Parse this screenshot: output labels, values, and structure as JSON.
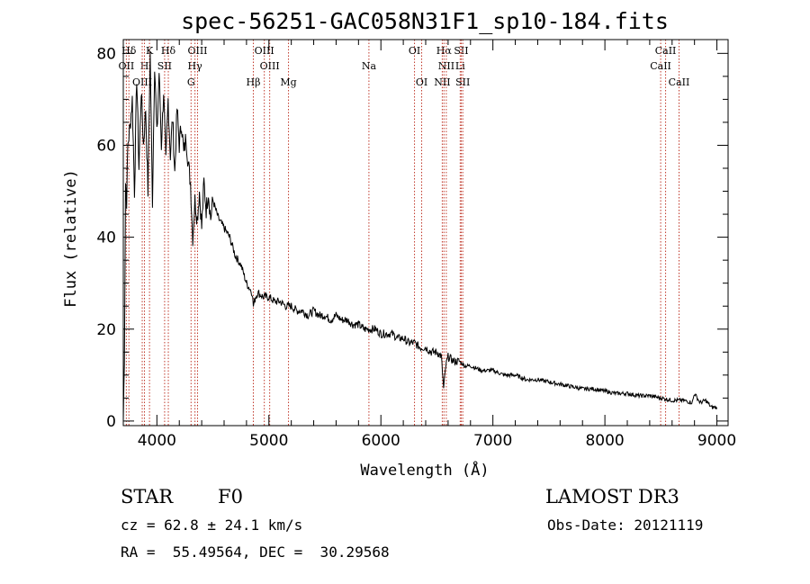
{
  "chart_data": {
    "type": "line",
    "title": "spec-56251-GAC058N31F1_sp10-184.fits",
    "xlabel": "Wavelength (Å)",
    "ylabel": "Flux (relative)",
    "xlim": [
      3700,
      9100
    ],
    "ylim": [
      -1,
      83
    ],
    "xticks": [
      4000,
      5000,
      6000,
      7000,
      8000,
      9000
    ],
    "yticks": [
      0,
      20,
      40,
      60,
      80
    ],
    "series": [
      {
        "name": "spectrum",
        "x": [
          3700,
          3710,
          3720,
          3730,
          3740,
          3760,
          3780,
          3800,
          3820,
          3840,
          3860,
          3880,
          3900,
          3920,
          3940,
          3960,
          3980,
          4000,
          4020,
          4040,
          4060,
          4080,
          4100,
          4120,
          4140,
          4160,
          4180,
          4200,
          4220,
          4240,
          4260,
          4280,
          4300,
          4320,
          4340,
          4360,
          4380,
          4400,
          4420,
          4440,
          4460,
          4480,
          4500,
          4550,
          4600,
          4650,
          4700,
          4750,
          4800,
          4850,
          4861,
          4880,
          4900,
          4950,
          5000,
          5050,
          5100,
          5150,
          5200,
          5250,
          5300,
          5350,
          5400,
          5450,
          5500,
          5550,
          5600,
          5650,
          5700,
          5750,
          5800,
          5850,
          5900,
          5950,
          6000,
          6050,
          6100,
          6150,
          6200,
          6250,
          6300,
          6350,
          6400,
          6450,
          6500,
          6540,
          6560,
          6580,
          6600,
          6650,
          6700,
          6750,
          6800,
          6900,
          7000,
          7100,
          7200,
          7300,
          7400,
          7500,
          7600,
          7700,
          7800,
          7900,
          8000,
          8100,
          8200,
          8300,
          8400,
          8500,
          8600,
          8700,
          8780,
          8800,
          8850,
          8900,
          8950,
          9000
        ],
        "y": [
          0,
          14,
          52,
          48,
          60,
          64,
          70,
          50,
          75,
          55,
          72,
          60,
          68,
          50,
          80,
          48,
          78,
          62,
          76,
          60,
          72,
          56,
          70,
          58,
          66,
          54,
          68,
          60,
          65,
          58,
          62,
          56,
          52,
          40,
          48,
          44,
          50,
          42,
          52,
          46,
          50,
          44,
          48,
          44,
          42,
          40,
          36,
          34,
          30,
          28,
          25,
          27,
          28,
          27,
          27,
          26,
          26,
          25,
          25,
          24,
          24,
          23,
          24,
          23,
          23,
          22,
          23,
          22,
          22,
          21,
          21,
          20,
          20,
          20,
          19,
          19,
          19,
          18,
          18,
          17,
          17,
          16,
          16,
          15,
          15,
          14,
          7,
          12,
          14,
          13,
          13,
          12,
          12,
          11,
          11,
          10,
          10,
          9,
          9,
          8.5,
          8,
          7.5,
          7,
          7,
          6.5,
          6,
          6,
          5.5,
          5.5,
          5,
          4.5,
          4.5,
          4,
          6,
          4,
          4.5,
          3,
          3
        ]
      }
    ],
    "line_markers": [
      {
        "label": "Hδ",
        "row": 0,
        "x": 3750
      },
      {
        "label": "K",
        "row": 0,
        "x": 3934
      },
      {
        "label": "Hδ",
        "row": 0,
        "x": 4102
      },
      {
        "label": "OIII",
        "row": 0,
        "x": 4363
      },
      {
        "label": "OIII",
        "row": 0,
        "x": 4959
      },
      {
        "label": "OI",
        "row": 0,
        "x": 6300
      },
      {
        "label": "Hα",
        "row": 0,
        "x": 6563
      },
      {
        "label": "SII",
        "row": 0,
        "x": 6717
      },
      {
        "label": "CaII",
        "row": 0,
        "x": 8542
      },
      {
        "label": "OII",
        "row": 1,
        "x": 3727
      },
      {
        "label": "H",
        "row": 1,
        "x": 3889
      },
      {
        "label": "SII",
        "row": 1,
        "x": 4069
      },
      {
        "label": "Hγ",
        "row": 1,
        "x": 4340
      },
      {
        "label": "OIII",
        "row": 1,
        "x": 5007
      },
      {
        "label": "Na",
        "row": 1,
        "x": 5893
      },
      {
        "label": "NII",
        "row": 1,
        "x": 6584
      },
      {
        "label": "Li",
        "row": 1,
        "x": 6708
      },
      {
        "label": "CaII",
        "row": 1,
        "x": 8498
      },
      {
        "label": "OIII",
        "row": 2,
        "x": 3869
      },
      {
        "label": "G",
        "row": 2,
        "x": 4305
      },
      {
        "label": "Hβ",
        "row": 2,
        "x": 4861
      },
      {
        "label": "Mg",
        "row": 2,
        "x": 5175
      },
      {
        "label": "OI",
        "row": 2,
        "x": 6364
      },
      {
        "label": "NII",
        "row": 2,
        "x": 6548
      },
      {
        "label": "SII",
        "row": 2,
        "x": 6731
      },
      {
        "label": "CaII",
        "row": 2,
        "x": 8662
      }
    ]
  },
  "info": {
    "class": "STAR",
    "subclass": "F0",
    "survey": "LAMOST DR3",
    "cz": "cz = 62.8 ± 24.1 km/s",
    "obsdate": "Obs-Date: 20121119",
    "radec": "RA =  55.49564, DEC =  30.29568"
  },
  "colors": {
    "line": "#000000",
    "marker": "#c0392b"
  }
}
